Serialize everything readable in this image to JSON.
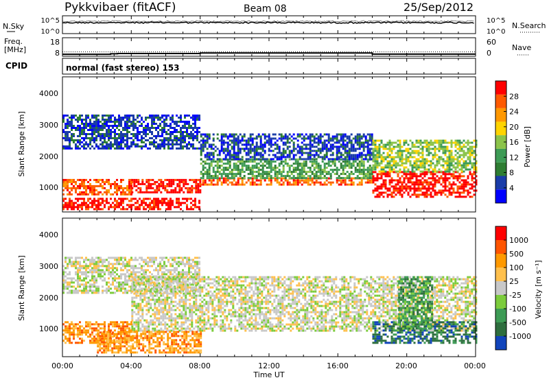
{
  "header": {
    "station": "Pykkvibaer (fitACF)",
    "beam": "Beam 08",
    "date": "25/Sep/2012"
  },
  "noise_panel": {
    "left_label": "N.Sky",
    "left_ticks": [
      "10^5",
      "10^0"
    ],
    "right_ticks": [
      "10^5",
      "10^0"
    ],
    "right_label": "N.Search"
  },
  "freq_panel": {
    "left_label_1": "Freq.",
    "left_label_2": "[MHz]",
    "left_ticks": [
      "18",
      "8"
    ],
    "right_ticks": [
      "60",
      "0"
    ],
    "right_label": "Nave",
    "nave_level": 20,
    "freq_steps": [
      {
        "t0": 0.0,
        "t1": 2.8,
        "f": 9.2
      },
      {
        "t0": 2.8,
        "t1": 3.2,
        "f": 9.6
      },
      {
        "t0": 3.2,
        "t1": 8.0,
        "f": 9.9
      },
      {
        "t0": 8.0,
        "t1": 18.0,
        "f": 10.3
      },
      {
        "t0": 18.0,
        "t1": 24.0,
        "f": 9.3
      }
    ]
  },
  "cpid": {
    "label": "CPID",
    "text": "normal (fast stereo) 153"
  },
  "x_axis": {
    "ticks": [
      "00:00",
      "04:00",
      "08:00",
      "12:00",
      "16:00",
      "20:00",
      "00:00"
    ],
    "label": "Time UT",
    "range": [
      0,
      24
    ]
  },
  "power_panel": {
    "ylabel": "Slant Range [km]",
    "yticks": [
      "4000",
      "3000",
      "2000",
      "1000"
    ],
    "colorbar_label": "Power [dB]",
    "colorbar_ticks": [
      "28",
      "24",
      "20",
      "16",
      "12",
      "8",
      "4"
    ],
    "colors": [
      "#0000ff",
      "#1a3ca8",
      "#2e7d32",
      "#3d9b55",
      "#8bc34a",
      "#ffd400",
      "#ff9800",
      "#ff5a00",
      "#ff0000"
    ]
  },
  "velocity_panel": {
    "ylabel": "Slant Range [km]",
    "yticks": [
      "4000",
      "3000",
      "2000",
      "1000"
    ],
    "colorbar_label": "Velocity [m s⁻¹]",
    "colorbar_ticks": [
      "1000",
      "500",
      "100",
      "25",
      "-25",
      "-100",
      "-500",
      "-1000"
    ],
    "colors": [
      "#1144bb",
      "#2e6e3e",
      "#3d9b55",
      "#7ccc3c",
      "#c8c8c8",
      "#ffc04d",
      "#ff9900",
      "#ff5500",
      "#ff0000"
    ]
  },
  "chart_data": {
    "type": "heatmap",
    "x_range_hours": [
      0,
      24
    ],
    "y_range_km": [
      200,
      4500
    ],
    "panels": [
      "Power [dB]",
      "Velocity [m s⁻¹]"
    ],
    "power_bands": [
      {
        "t0": 0.0,
        "t1": 4.0,
        "r0": 750,
        "r1": 1250,
        "level": 7
      },
      {
        "t0": 0.0,
        "t1": 8.0,
        "r0": 300,
        "r1": 650,
        "level": 8
      },
      {
        "t0": 4.0,
        "t1": 8.0,
        "r0": 850,
        "r1": 1250,
        "level": 8
      },
      {
        "t0": 0.0,
        "t1": 8.0,
        "r0": 2200,
        "r1": 3300,
        "level": 1
      },
      {
        "t0": 8.0,
        "t1": 18.0,
        "r0": 1050,
        "r1": 1300,
        "level": 7
      },
      {
        "t0": 8.0,
        "t1": 18.0,
        "r0": 1300,
        "r1": 1900,
        "level": 3
      },
      {
        "t0": 8.0,
        "t1": 18.0,
        "r0": 1900,
        "r1": 2700,
        "level": 1
      },
      {
        "t0": 18.0,
        "t1": 24.0,
        "r0": 700,
        "r1": 1500,
        "level": 8
      },
      {
        "t0": 18.0,
        "t1": 24.0,
        "r0": 1500,
        "r1": 2500,
        "level": 4
      }
    ],
    "velocity_bands": [
      {
        "t0": 0.0,
        "t1": 8.0,
        "r0": 2200,
        "r1": 3300,
        "level": 4
      },
      {
        "t0": 4.0,
        "t1": 24.0,
        "r0": 1000,
        "r1": 2700,
        "level": 4
      },
      {
        "t0": 0.0,
        "t1": 4.0,
        "r0": 600,
        "r1": 1300,
        "level": 6
      },
      {
        "t0": 2.0,
        "t1": 8.0,
        "r0": 300,
        "r1": 1000,
        "level": 6
      },
      {
        "t0": 18.0,
        "t1": 24.0,
        "r0": 600,
        "r1": 1300,
        "level": 1
      },
      {
        "t0": 19.5,
        "t1": 21.5,
        "r0": 1100,
        "r1": 2700,
        "level": 2
      }
    ]
  }
}
